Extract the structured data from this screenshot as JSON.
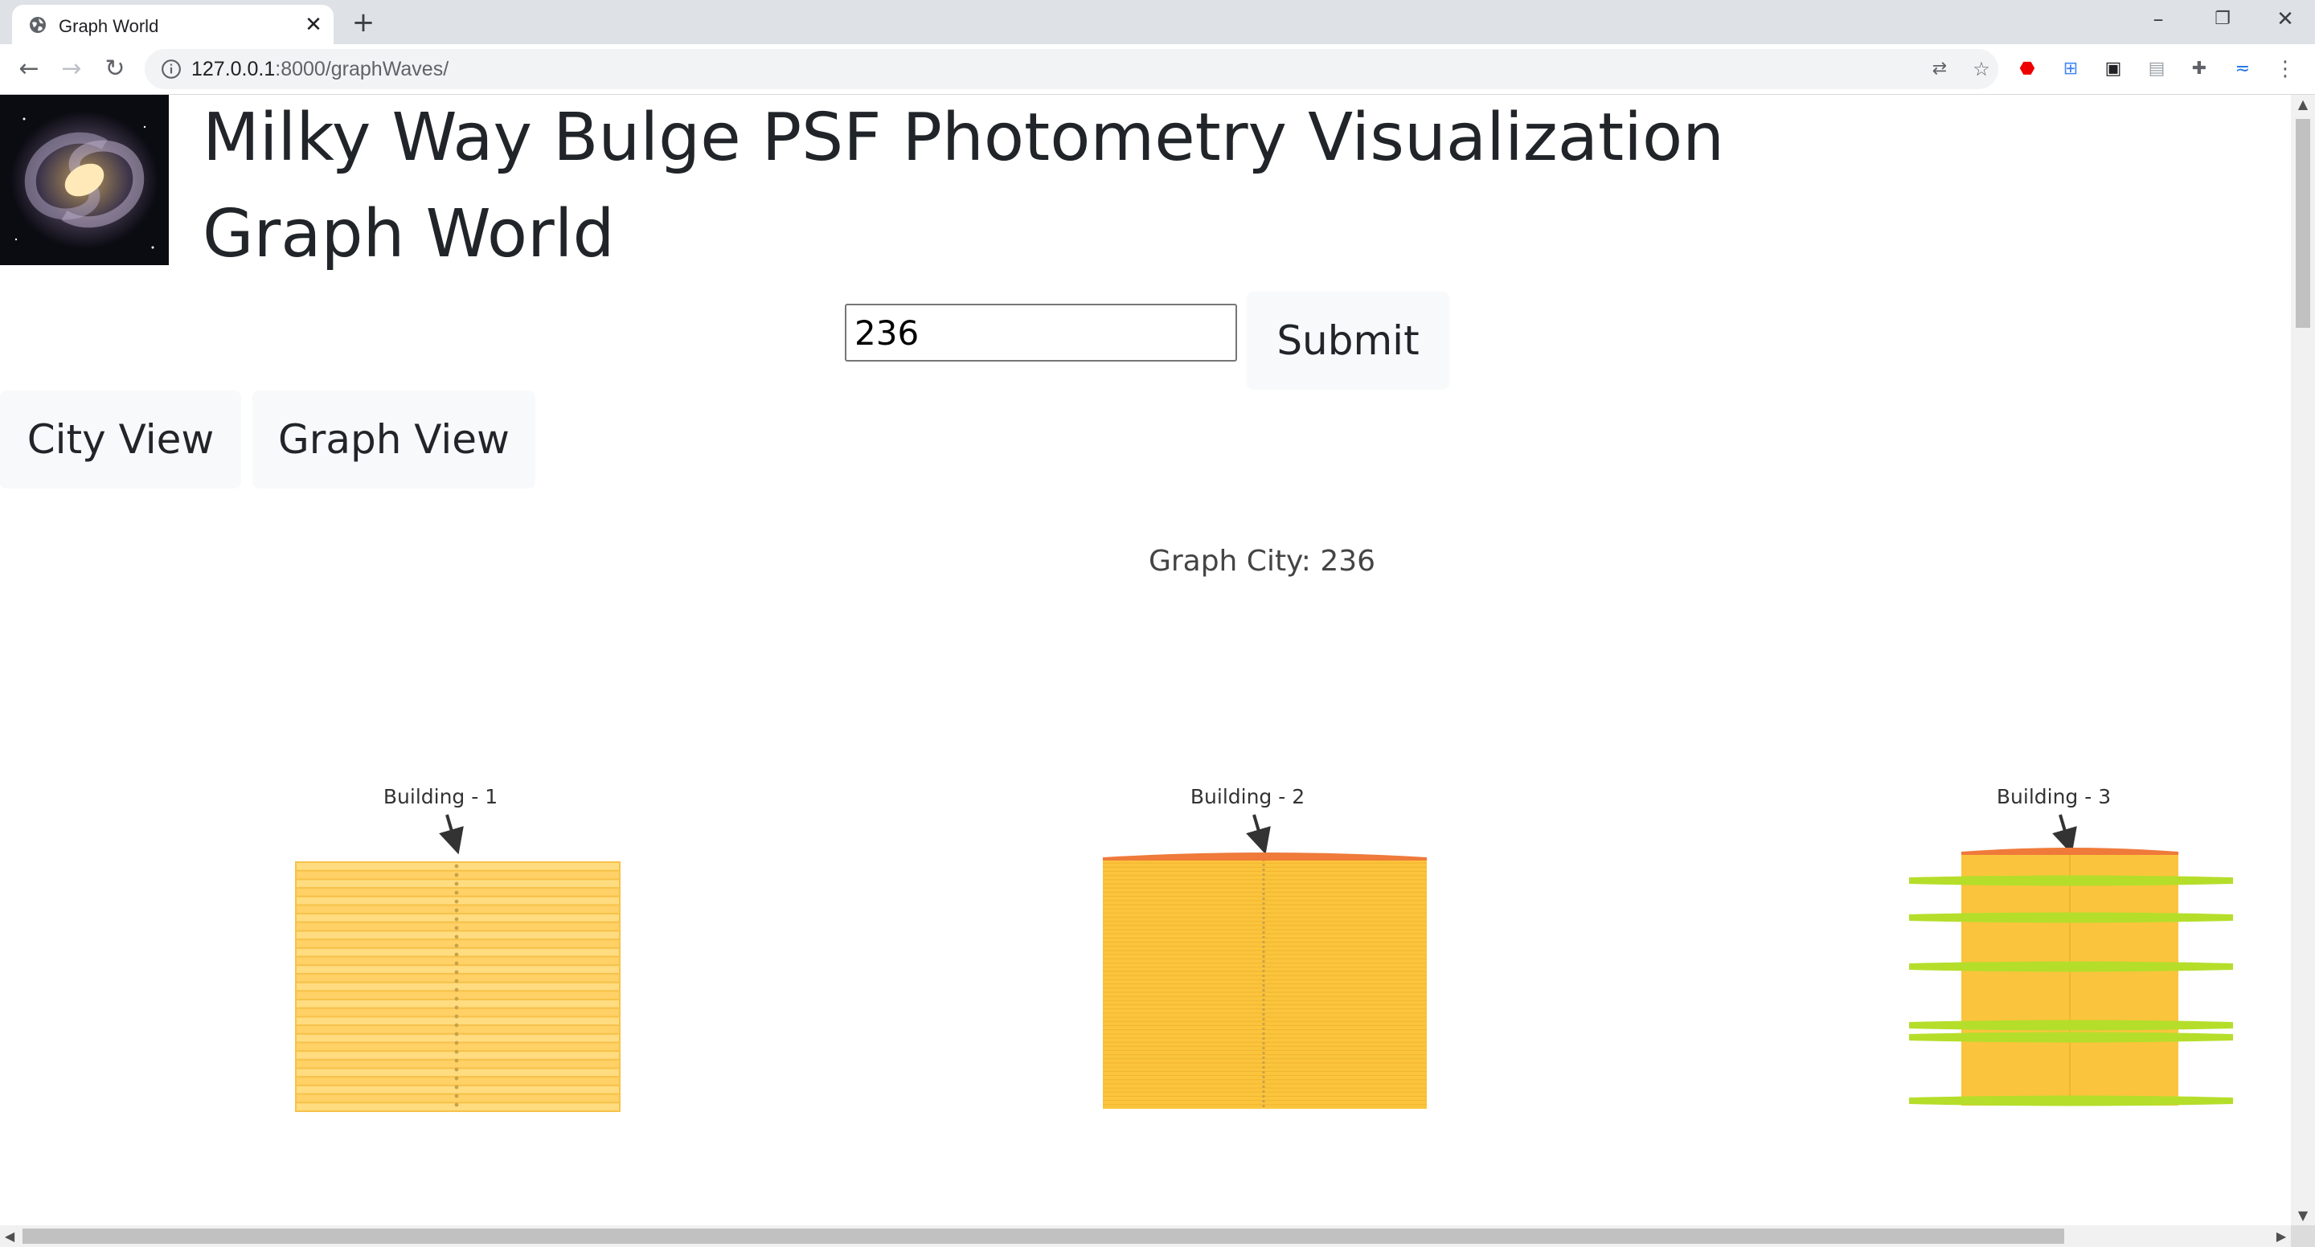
{
  "browser": {
    "tab_title": "Graph World",
    "tab_close": "✕",
    "new_tab": "+",
    "url_host": "127.0.0.1",
    "url_path": ":8000/graphWaves/",
    "window_controls": [
      "–",
      "❐",
      "✕"
    ]
  },
  "header": {
    "title": "Milky Way Bulge PSF Photometry Visualization",
    "subtitle": "Graph World"
  },
  "search": {
    "value": "236",
    "submit_label": "Submit"
  },
  "views": {
    "city_label": "City View",
    "graph_label": "Graph View"
  },
  "graph_city": {
    "caption_prefix": "Graph City:",
    "caption_value": "236"
  },
  "buildings": [
    {
      "label": "Building - 1",
      "type": "striped",
      "floors": 29,
      "has_roof": false,
      "ledges": 0
    },
    {
      "label": "Building - 2",
      "type": "dense",
      "floors": 60,
      "has_roof": true,
      "ledges": 0
    },
    {
      "label": "Building - 3",
      "type": "ledged",
      "floors": 1,
      "has_roof": true,
      "ledges": 6
    }
  ],
  "colors": {
    "building_fill": "#ffd166",
    "building_stripe": "#f6c24a",
    "building_dense": "#fbc43d",
    "roof": "#ef7a3a",
    "ledge": "#b5de2b",
    "spine": "#c8a24a",
    "arrow": "#333333"
  }
}
